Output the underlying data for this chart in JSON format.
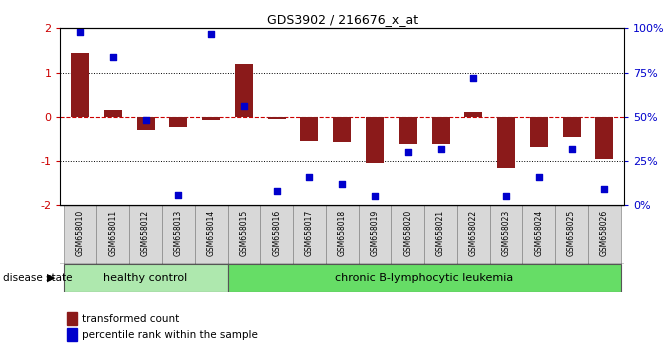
{
  "title": "GDS3902 / 216676_x_at",
  "samples": [
    "GSM658010",
    "GSM658011",
    "GSM658012",
    "GSM658013",
    "GSM658014",
    "GSM658015",
    "GSM658016",
    "GSM658017",
    "GSM658018",
    "GSM658019",
    "GSM658020",
    "GSM658021",
    "GSM658022",
    "GSM658023",
    "GSM658024",
    "GSM658025",
    "GSM658026"
  ],
  "bar_values": [
    1.45,
    0.15,
    -0.3,
    -0.22,
    -0.08,
    1.2,
    -0.05,
    -0.55,
    -0.58,
    -1.05,
    -0.62,
    -0.62,
    0.12,
    -1.15,
    -0.68,
    -0.45,
    -0.95
  ],
  "dot_values_pct": [
    98,
    84,
    48,
    6,
    97,
    56,
    8,
    16,
    12,
    5,
    30,
    32,
    72,
    5,
    16,
    32,
    9
  ],
  "bar_color": "#8B1A1A",
  "dot_color": "#0000CC",
  "dashed_line_color": "#CC0000",
  "ylim": [
    -2.0,
    2.0
  ],
  "yticks_left": [
    -2,
    -1,
    0,
    1,
    2
  ],
  "ytick_labels_right": [
    "0%",
    "25%",
    "50%",
    "75%",
    "100%"
  ],
  "ytick_values_right": [
    -2,
    -1,
    0,
    1,
    2
  ],
  "healthy_label": "healthy control",
  "disease_label": "chronic B-lymphocytic leukemia",
  "healthy_count": 5,
  "legend_bar_label": "transformed count",
  "legend_dot_label": "percentile rank within the sample",
  "disease_state_label": "disease state",
  "group_color_healthy": "#aee8ae",
  "group_color_disease": "#66dd66",
  "label_bg_color": "#d8d8d8"
}
